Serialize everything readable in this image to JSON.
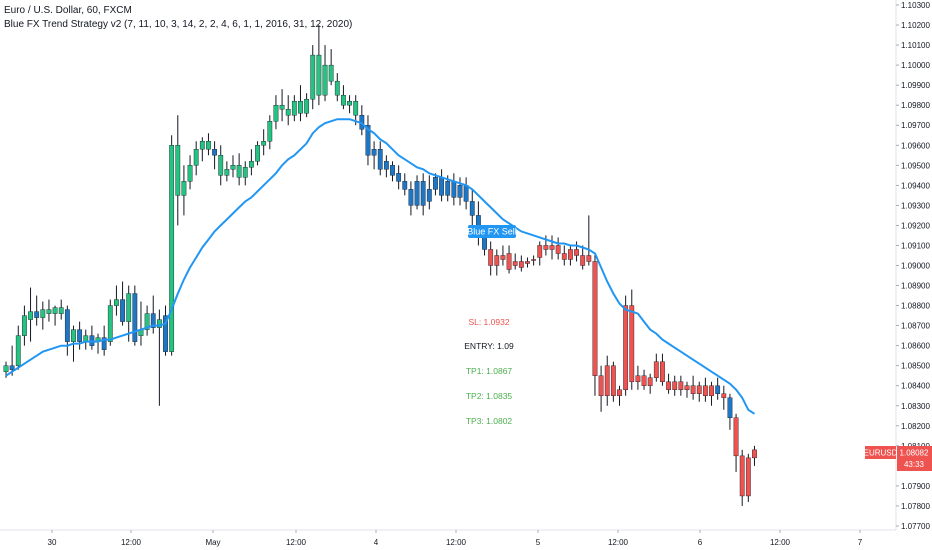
{
  "header": {
    "symbol_line": "Euro / U.S. Dollar, 60, FXCM",
    "indicator_line": "Blue FX Trend Strategy v2 (7, 11, 10, 3, 14, 2, 2, 4, 6, 1, 1, 2016, 31, 12, 2020)"
  },
  "colors": {
    "bull": "#26c281",
    "bear_red": "#ef5350",
    "blue": "#1f77c4",
    "ma_line": "#2196f3",
    "sl": "#ef5350",
    "entry": "#131722",
    "tp": "#4caf50",
    "price_tag": "#ef5350"
  },
  "price_axis": {
    "ticks": [
      "1.10300",
      "1.10200",
      "1.10100",
      "1.10000",
      "1.09900",
      "1.09800",
      "1.09700",
      "1.09600",
      "1.09500",
      "1.09400",
      "1.09300",
      "1.09200",
      "1.09100",
      "1.09000",
      "1.08900",
      "1.08800",
      "1.08700",
      "1.08600",
      "1.08500",
      "1.08400",
      "1.08300",
      "1.08200",
      "1.08100",
      "1.07900",
      "1.07800",
      "1.07700"
    ],
    "current_symbol": "EURUSD",
    "current_price": "1.08082",
    "countdown": "43:33"
  },
  "time_axis": {
    "labels": [
      "30",
      "12:00",
      "May",
      "12:00",
      "4",
      "12:00",
      "5",
      "12:00",
      "6",
      "12:00",
      "7"
    ]
  },
  "signal": {
    "label": "Blue FX Sell"
  },
  "trade_levels": {
    "sl": "SL: 1.0932",
    "entry": "ENTRY: 1.09",
    "tp1": "TP1: 1.0867",
    "tp2": "TP2: 1.0835",
    "tp3": "TP3: 1.0802"
  },
  "chart_data": {
    "type": "candlestick",
    "title": "Euro / U.S. Dollar, 60, FXCM",
    "ylim": [
      1.077,
      1.103
    ],
    "candles": [
      {
        "o": 1.0847,
        "h": 1.0852,
        "l": 1.0844,
        "c": 1.085,
        "col": "g"
      },
      {
        "o": 1.085,
        "h": 1.086,
        "l": 1.0845,
        "c": 1.0848,
        "col": "b"
      },
      {
        "o": 1.085,
        "h": 1.087,
        "l": 1.0848,
        "c": 1.0865,
        "col": "g"
      },
      {
        "o": 1.0865,
        "h": 1.088,
        "l": 1.086,
        "c": 1.0875,
        "col": "g"
      },
      {
        "o": 1.0873,
        "h": 1.0889,
        "l": 1.0862,
        "c": 1.0877,
        "col": "g"
      },
      {
        "o": 1.0877,
        "h": 1.0885,
        "l": 1.087,
        "c": 1.0874,
        "col": "b"
      },
      {
        "o": 1.0874,
        "h": 1.0882,
        "l": 1.0868,
        "c": 1.0878,
        "col": "g"
      },
      {
        "o": 1.0878,
        "h": 1.0883,
        "l": 1.0872,
        "c": 1.0876,
        "col": "g"
      },
      {
        "o": 1.0876,
        "h": 1.088,
        "l": 1.087,
        "c": 1.0879,
        "col": "g"
      },
      {
        "o": 1.0879,
        "h": 1.0883,
        "l": 1.0873,
        "c": 1.0876,
        "col": "g"
      },
      {
        "o": 1.0878,
        "h": 1.088,
        "l": 1.0855,
        "c": 1.0862,
        "col": "b"
      },
      {
        "o": 1.0862,
        "h": 1.087,
        "l": 1.0852,
        "c": 1.0868,
        "col": "g"
      },
      {
        "o": 1.0868,
        "h": 1.0872,
        "l": 1.0858,
        "c": 1.0862,
        "col": "b"
      },
      {
        "o": 1.0862,
        "h": 1.0868,
        "l": 1.0858,
        "c": 1.0865,
        "col": "g"
      },
      {
        "o": 1.0865,
        "h": 1.087,
        "l": 1.0858,
        "c": 1.086,
        "col": "b"
      },
      {
        "o": 1.0862,
        "h": 1.0866,
        "l": 1.0856,
        "c": 1.0864,
        "col": "g"
      },
      {
        "o": 1.0864,
        "h": 1.087,
        "l": 1.0855,
        "c": 1.0858,
        "col": "b"
      },
      {
        "o": 1.0862,
        "h": 1.0883,
        "l": 1.086,
        "c": 1.088,
        "col": "g"
      },
      {
        "o": 1.088,
        "h": 1.089,
        "l": 1.0875,
        "c": 1.0883,
        "col": "g"
      },
      {
        "o": 1.0883,
        "h": 1.0892,
        "l": 1.087,
        "c": 1.0872,
        "col": "b"
      },
      {
        "o": 1.0872,
        "h": 1.089,
        "l": 1.0862,
        "c": 1.0886,
        "col": "g"
      },
      {
        "o": 1.0886,
        "h": 1.089,
        "l": 1.086,
        "c": 1.0862,
        "col": "b"
      },
      {
        "o": 1.0865,
        "h": 1.0882,
        "l": 1.086,
        "c": 1.0868,
        "col": "g"
      },
      {
        "o": 1.0868,
        "h": 1.088,
        "l": 1.0865,
        "c": 1.0876,
        "col": "g"
      },
      {
        "o": 1.0876,
        "h": 1.0885,
        "l": 1.0866,
        "c": 1.0869,
        "col": "b"
      },
      {
        "o": 1.0869,
        "h": 1.0878,
        "l": 1.083,
        "c": 1.0873,
        "col": "g"
      },
      {
        "o": 1.0875,
        "h": 1.088,
        "l": 1.0855,
        "c": 1.0857,
        "col": "b"
      },
      {
        "o": 1.0857,
        "h": 1.0965,
        "l": 1.0855,
        "c": 1.096,
        "col": "g"
      },
      {
        "o": 1.096,
        "h": 1.0975,
        "l": 1.092,
        "c": 1.0935,
        "col": "g"
      },
      {
        "o": 1.0935,
        "h": 1.095,
        "l": 1.0925,
        "c": 1.0942,
        "col": "g"
      },
      {
        "o": 1.0942,
        "h": 1.0955,
        "l": 1.0938,
        "c": 1.095,
        "col": "g"
      },
      {
        "o": 1.095,
        "h": 1.0962,
        "l": 1.0945,
        "c": 1.0958,
        "col": "g"
      },
      {
        "o": 1.0958,
        "h": 1.0964,
        "l": 1.0952,
        "c": 1.0962,
        "col": "g"
      },
      {
        "o": 1.0962,
        "h": 1.0966,
        "l": 1.0955,
        "c": 1.0958,
        "col": "g"
      },
      {
        "o": 1.0958,
        "h": 1.0962,
        "l": 1.0948,
        "c": 1.0955,
        "col": "b"
      },
      {
        "o": 1.0955,
        "h": 1.096,
        "l": 1.094,
        "c": 1.0945,
        "col": "g"
      },
      {
        "o": 1.0945,
        "h": 1.0952,
        "l": 1.0942,
        "c": 1.0948,
        "col": "g"
      },
      {
        "o": 1.0948,
        "h": 1.0955,
        "l": 1.0944,
        "c": 1.095,
        "col": "g"
      },
      {
        "o": 1.095,
        "h": 1.0956,
        "l": 1.094,
        "c": 1.0944,
        "col": "g"
      },
      {
        "o": 1.0944,
        "h": 1.0952,
        "l": 1.094,
        "c": 1.0949,
        "col": "g"
      },
      {
        "o": 1.0949,
        "h": 1.0958,
        "l": 1.0945,
        "c": 1.0952,
        "col": "g"
      },
      {
        "o": 1.0952,
        "h": 1.0962,
        "l": 1.095,
        "c": 1.096,
        "col": "g"
      },
      {
        "o": 1.096,
        "h": 1.0968,
        "l": 1.0955,
        "c": 1.0962,
        "col": "g"
      },
      {
        "o": 1.0962,
        "h": 1.0975,
        "l": 1.0958,
        "c": 1.0972,
        "col": "g"
      },
      {
        "o": 1.0972,
        "h": 1.0985,
        "l": 1.0968,
        "c": 1.098,
        "col": "g"
      },
      {
        "o": 1.098,
        "h": 1.0988,
        "l": 1.0972,
        "c": 1.0978,
        "col": "g"
      },
      {
        "o": 1.0978,
        "h": 1.0985,
        "l": 1.097,
        "c": 1.0975,
        "col": "g"
      },
      {
        "o": 1.0975,
        "h": 1.0985,
        "l": 1.0972,
        "c": 1.0982,
        "col": "g"
      },
      {
        "o": 1.0982,
        "h": 1.099,
        "l": 1.0972,
        "c": 1.0976,
        "col": "g"
      },
      {
        "o": 1.0976,
        "h": 1.0986,
        "l": 1.0974,
        "c": 1.0983,
        "col": "g"
      },
      {
        "o": 1.0983,
        "h": 1.101,
        "l": 1.0978,
        "c": 1.1005,
        "col": "g"
      },
      {
        "o": 1.1005,
        "h": 1.102,
        "l": 1.098,
        "c": 1.0985,
        "col": "g"
      },
      {
        "o": 1.0985,
        "h": 1.101,
        "l": 1.0982,
        "c": 1.1,
        "col": "g"
      },
      {
        "o": 1.1,
        "h": 1.1008,
        "l": 1.099,
        "c": 1.0992,
        "col": "g"
      },
      {
        "o": 1.0992,
        "h": 1.0996,
        "l": 1.0982,
        "c": 1.0985,
        "col": "g"
      },
      {
        "o": 1.0985,
        "h": 1.099,
        "l": 1.0978,
        "c": 1.098,
        "col": "g"
      },
      {
        "o": 1.098,
        "h": 1.0985,
        "l": 1.0976,
        "c": 1.0982,
        "col": "g"
      },
      {
        "o": 1.0982,
        "h": 1.0985,
        "l": 1.097,
        "c": 1.0975,
        "col": "g"
      },
      {
        "o": 1.0975,
        "h": 1.098,
        "l": 1.0965,
        "c": 1.0968,
        "col": "b"
      },
      {
        "o": 1.097,
        "h": 1.0975,
        "l": 1.095,
        "c": 1.0955,
        "col": "b"
      },
      {
        "o": 1.0955,
        "h": 1.0962,
        "l": 1.0948,
        "c": 1.0958,
        "col": "b"
      },
      {
        "o": 1.0958,
        "h": 1.0962,
        "l": 1.0945,
        "c": 1.0948,
        "col": "b"
      },
      {
        "o": 1.0948,
        "h": 1.0955,
        "l": 1.0944,
        "c": 1.0952,
        "col": "b"
      },
      {
        "o": 1.095,
        "h": 1.0952,
        "l": 1.0942,
        "c": 1.0945,
        "col": "b"
      },
      {
        "o": 1.0946,
        "h": 1.095,
        "l": 1.0938,
        "c": 1.0942,
        "col": "b"
      },
      {
        "o": 1.0942,
        "h": 1.0946,
        "l": 1.0935,
        "c": 1.0938,
        "col": "b"
      },
      {
        "o": 1.0938,
        "h": 1.0942,
        "l": 1.0925,
        "c": 1.093,
        "col": "b"
      },
      {
        "o": 1.093,
        "h": 1.0945,
        "l": 1.0928,
        "c": 1.0942,
        "col": "b"
      },
      {
        "o": 1.0942,
        "h": 1.0946,
        "l": 1.0925,
        "c": 1.093,
        "col": "b"
      },
      {
        "o": 1.0932,
        "h": 1.0945,
        "l": 1.0928,
        "c": 1.0938,
        "col": "b"
      },
      {
        "o": 1.0938,
        "h": 1.0946,
        "l": 1.0935,
        "c": 1.0944,
        "col": "b"
      },
      {
        "o": 1.0944,
        "h": 1.0948,
        "l": 1.0932,
        "c": 1.0935,
        "col": "b"
      },
      {
        "o": 1.0935,
        "h": 1.0945,
        "l": 1.0932,
        "c": 1.0942,
        "col": "b"
      },
      {
        "o": 1.0942,
        "h": 1.0946,
        "l": 1.093,
        "c": 1.0934,
        "col": "b"
      },
      {
        "o": 1.0934,
        "h": 1.0944,
        "l": 1.093,
        "c": 1.094,
        "col": "b"
      },
      {
        "o": 1.094,
        "h": 1.0944,
        "l": 1.0928,
        "c": 1.0932,
        "col": "b"
      },
      {
        "o": 1.0932,
        "h": 1.0938,
        "l": 1.092,
        "c": 1.0925,
        "col": "b"
      },
      {
        "o": 1.0925,
        "h": 1.0932,
        "l": 1.091,
        "c": 1.0915,
        "col": "b"
      },
      {
        "o": 1.0915,
        "h": 1.092,
        "l": 1.0905,
        "c": 1.0908,
        "col": "b"
      },
      {
        "o": 1.0908,
        "h": 1.0912,
        "l": 1.0895,
        "c": 1.09,
        "col": "r"
      },
      {
        "o": 1.09,
        "h": 1.0908,
        "l": 1.0895,
        "c": 1.0905,
        "col": "r"
      },
      {
        "o": 1.0905,
        "h": 1.091,
        "l": 1.09,
        "c": 1.0903,
        "col": "r"
      },
      {
        "o": 1.0906,
        "h": 1.091,
        "l": 1.0896,
        "c": 1.0898,
        "col": "r"
      },
      {
        "o": 1.0902,
        "h": 1.0906,
        "l": 1.0898,
        "c": 1.09,
        "col": "r"
      },
      {
        "o": 1.0902,
        "h": 1.0905,
        "l": 1.0897,
        "c": 1.0899,
        "col": "r"
      },
      {
        "o": 1.0901,
        "h": 1.0904,
        "l": 1.0899,
        "c": 1.0902,
        "col": "r"
      },
      {
        "o": 1.0903,
        "h": 1.0905,
        "l": 1.09,
        "c": 1.0903,
        "col": "r"
      },
      {
        "o": 1.0904,
        "h": 1.0912,
        "l": 1.09,
        "c": 1.091,
        "col": "r"
      },
      {
        "o": 1.091,
        "h": 1.0915,
        "l": 1.0905,
        "c": 1.0908,
        "col": "r"
      },
      {
        "o": 1.0908,
        "h": 1.0915,
        "l": 1.0903,
        "c": 1.091,
        "col": "r"
      },
      {
        "o": 1.091,
        "h": 1.0914,
        "l": 1.0903,
        "c": 1.0906,
        "col": "r"
      },
      {
        "o": 1.0906,
        "h": 1.091,
        "l": 1.09,
        "c": 1.0903,
        "col": "r"
      },
      {
        "o": 1.0903,
        "h": 1.091,
        "l": 1.09,
        "c": 1.0908,
        "col": "r"
      },
      {
        "o": 1.0908,
        "h": 1.0912,
        "l": 1.0902,
        "c": 1.0905,
        "col": "r"
      },
      {
        "o": 1.0905,
        "h": 1.091,
        "l": 1.0898,
        "c": 1.09,
        "col": "r"
      },
      {
        "o": 1.0905,
        "h": 1.0925,
        "l": 1.09,
        "c": 1.0902,
        "col": "r"
      },
      {
        "o": 1.0902,
        "h": 1.0906,
        "l": 1.0835,
        "c": 1.0845,
        "col": "r"
      },
      {
        "o": 1.0845,
        "h": 1.085,
        "l": 1.0827,
        "c": 1.0835,
        "col": "r"
      },
      {
        "o": 1.0835,
        "h": 1.0855,
        "l": 1.083,
        "c": 1.085,
        "col": "r"
      },
      {
        "o": 1.085,
        "h": 1.0852,
        "l": 1.0832,
        "c": 1.0835,
        "col": "r"
      },
      {
        "o": 1.0835,
        "h": 1.084,
        "l": 1.083,
        "c": 1.0838,
        "col": "r"
      },
      {
        "o": 1.0838,
        "h": 1.0885,
        "l": 1.0835,
        "c": 1.088,
        "col": "r"
      },
      {
        "o": 1.088,
        "h": 1.0888,
        "l": 1.0838,
        "c": 1.0842,
        "col": "r"
      },
      {
        "o": 1.0842,
        "h": 1.085,
        "l": 1.0838,
        "c": 1.0845,
        "col": "r"
      },
      {
        "o": 1.0845,
        "h": 1.0848,
        "l": 1.0838,
        "c": 1.084,
        "col": "r"
      },
      {
        "o": 1.084,
        "h": 1.0846,
        "l": 1.0836,
        "c": 1.0844,
        "col": "r"
      },
      {
        "o": 1.0844,
        "h": 1.0856,
        "l": 1.0842,
        "c": 1.0852,
        "col": "r"
      },
      {
        "o": 1.0852,
        "h": 1.0856,
        "l": 1.084,
        "c": 1.0842,
        "col": "r"
      },
      {
        "o": 1.0842,
        "h": 1.0846,
        "l": 1.0836,
        "c": 1.0838,
        "col": "r"
      },
      {
        "o": 1.0838,
        "h": 1.0845,
        "l": 1.0835,
        "c": 1.0842,
        "col": "r"
      },
      {
        "o": 1.0842,
        "h": 1.0845,
        "l": 1.0835,
        "c": 1.0838,
        "col": "r"
      },
      {
        "o": 1.0838,
        "h": 1.0842,
        "l": 1.0834,
        "c": 1.084,
        "col": "r"
      },
      {
        "o": 1.084,
        "h": 1.0845,
        "l": 1.0833,
        "c": 1.0836,
        "col": "r"
      },
      {
        "o": 1.0836,
        "h": 1.0842,
        "l": 1.0832,
        "c": 1.084,
        "col": "r"
      },
      {
        "o": 1.084,
        "h": 1.0844,
        "l": 1.0832,
        "c": 1.0835,
        "col": "r"
      },
      {
        "o": 1.0835,
        "h": 1.0842,
        "l": 1.083,
        "c": 1.084,
        "col": "r"
      },
      {
        "o": 1.084,
        "h": 1.0844,
        "l": 1.0833,
        "c": 1.0836,
        "col": "b"
      },
      {
        "o": 1.0836,
        "h": 1.084,
        "l": 1.0828,
        "c": 1.0834,
        "col": "r"
      },
      {
        "o": 1.0834,
        "h": 1.0836,
        "l": 1.0818,
        "c": 1.0824,
        "col": "b"
      },
      {
        "o": 1.0824,
        "h": 1.0826,
        "l": 1.0797,
        "c": 1.0805,
        "col": "r"
      },
      {
        "o": 1.0805,
        "h": 1.0808,
        "l": 1.078,
        "c": 1.0785,
        "col": "r"
      },
      {
        "o": 1.0785,
        "h": 1.0806,
        "l": 1.0782,
        "c": 1.0804,
        "col": "r"
      },
      {
        "o": 1.0804,
        "h": 1.081,
        "l": 1.08,
        "c": 1.0808,
        "col": "r"
      }
    ],
    "ma": [
      1.0845,
      1.0847,
      1.0849,
      1.0851,
      1.0853,
      1.0855,
      1.0857,
      1.0858,
      1.0859,
      1.086,
      1.086,
      1.0861,
      1.0861,
      1.0862,
      1.0862,
      1.0862,
      1.0863,
      1.0863,
      1.0864,
      1.0865,
      1.0866,
      1.0867,
      1.0868,
      1.0869,
      1.087,
      1.087,
      1.0871,
      1.0878,
      1.0886,
      1.0893,
      1.0899,
      1.0904,
      1.0909,
      1.0913,
      1.0917,
      1.092,
      1.0923,
      1.0926,
      1.0929,
      1.0932,
      1.0934,
      1.0937,
      1.094,
      1.0943,
      1.0946,
      1.095,
      1.0953,
      1.0955,
      1.0958,
      1.0961,
      1.0966,
      1.0969,
      1.0971,
      1.0972,
      1.0973,
      1.0973,
      1.0973,
      1.0972,
      1.0971,
      1.0968,
      1.0966,
      1.0963,
      1.0961,
      1.0958,
      1.0955,
      1.0953,
      1.0951,
      1.0949,
      1.0948,
      1.0946,
      1.0945,
      1.0944,
      1.0943,
      1.0942,
      1.0941,
      1.094,
      1.0938,
      1.0935,
      1.0932,
      1.0929,
      1.0926,
      1.0923,
      1.0921,
      1.0919,
      1.0917,
      1.0916,
      1.0915,
      1.0914,
      1.0913,
      1.0912,
      1.0911,
      1.0911,
      1.091,
      1.091,
      1.0909,
      1.0908,
      1.0906,
      1.0899,
      1.0892,
      1.0886,
      1.0881,
      1.0878,
      1.0877,
      1.0876,
      1.0872,
      1.0868,
      1.0866,
      1.0863,
      1.0861,
      1.0859,
      1.0857,
      1.0855,
      1.0853,
      1.0851,
      1.0849,
      1.0847,
      1.0845,
      1.0843,
      1.0841,
      1.0838,
      1.0834,
      1.0828,
      1.0826
    ]
  }
}
